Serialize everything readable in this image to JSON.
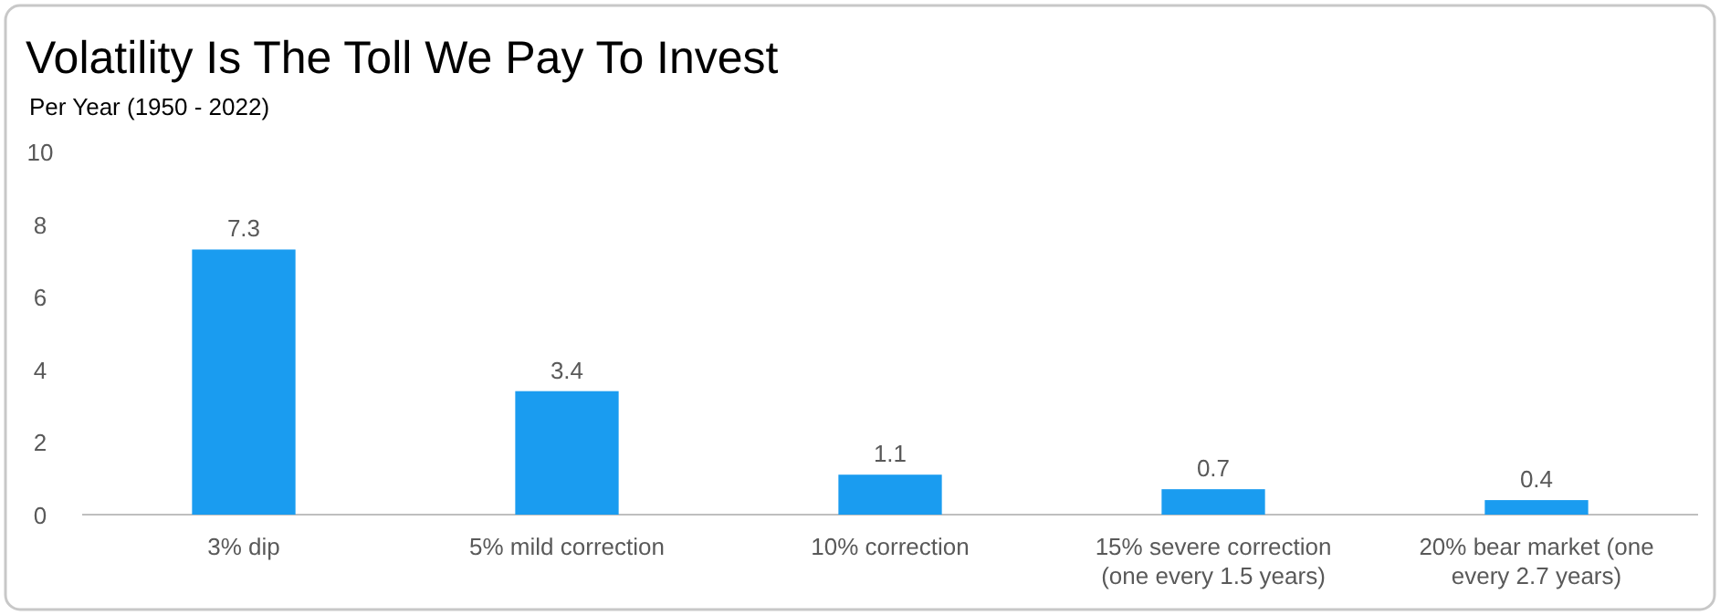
{
  "chart_data": {
    "type": "bar",
    "title": "Volatility Is The Toll We Pay To Invest",
    "subtitle": "Per Year (1950 - 2022)",
    "categories": [
      "3% dip",
      "5% mild correction",
      "10% correction",
      "15% severe correction\n(one every 1.5 years)",
      "20% bear market (one\nevery 2.7 years)"
    ],
    "values": [
      7.3,
      3.4,
      1.1,
      0.7,
      0.4
    ],
    "color": "#1a9cf0",
    "ylim": [
      0,
      10
    ],
    "yticks": [
      0,
      2,
      4,
      6,
      8,
      10
    ],
    "grid": false,
    "data_labels": true
  }
}
